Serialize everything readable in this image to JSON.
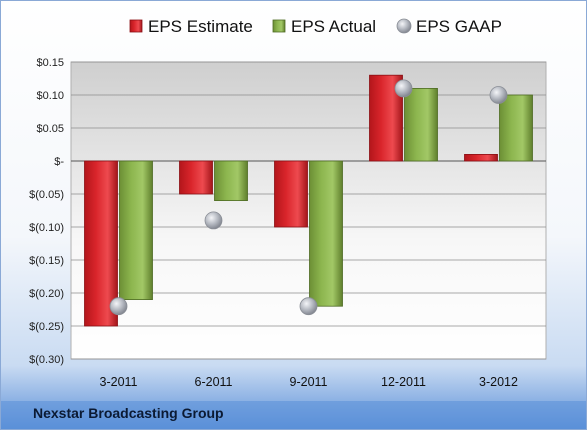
{
  "footer": {
    "company": "Nexstar Broadcasting Group"
  },
  "colors": {
    "estimate": "#d9252b",
    "actual": "#8cb54e",
    "gaap": "#b8bcc4",
    "background_top": "#ffffff",
    "background_bottom": "#5a8fd8"
  },
  "chart_data": {
    "type": "bar",
    "categories": [
      "3-2011",
      "6-2011",
      "9-2011",
      "12-2011",
      "3-2012"
    ],
    "series": [
      {
        "name": "EPS Estimate",
        "type": "bar",
        "values": [
          -0.25,
          -0.05,
          -0.1,
          0.13,
          0.01
        ]
      },
      {
        "name": "EPS Actual",
        "type": "bar",
        "values": [
          -0.21,
          -0.06,
          -0.22,
          0.11,
          0.1
        ]
      },
      {
        "name": "EPS GAAP",
        "type": "scatter",
        "values": [
          -0.22,
          -0.09,
          -0.22,
          0.11,
          0.1
        ]
      }
    ],
    "ylim": [
      -0.3,
      0.15
    ],
    "yticks": [
      0.15,
      0.1,
      0.05,
      0,
      -0.05,
      -0.1,
      -0.15,
      -0.2,
      -0.25,
      -0.3
    ],
    "ytick_labels": [
      "$0.15",
      "$0.10",
      "$0.05",
      "$-",
      "$(0.05)",
      "$(0.10)",
      "$(0.15)",
      "$(0.20)",
      "$(0.25)",
      "$(0.30)"
    ],
    "legend_position": "top",
    "grid": true
  }
}
